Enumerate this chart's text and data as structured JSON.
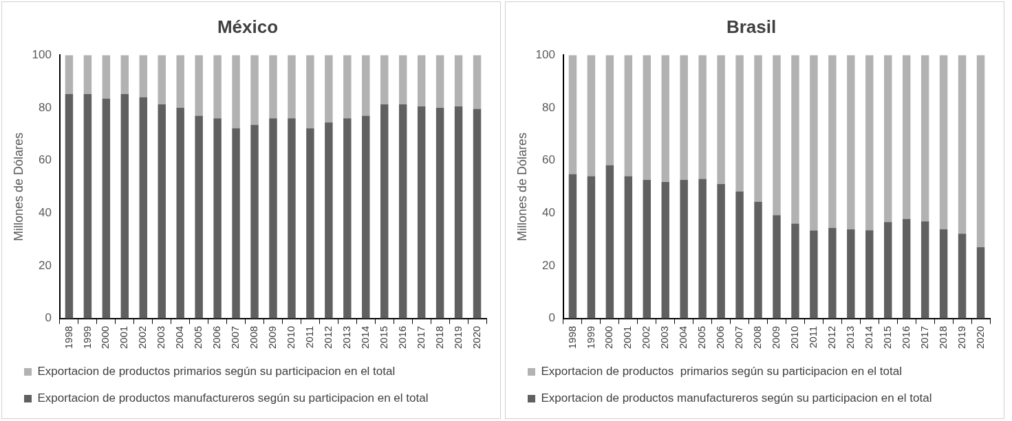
{
  "chart_data": [
    {
      "type": "bar",
      "title": "México",
      "ylabel": "Millones de Dólares",
      "stacked": true,
      "grid": false,
      "legend": "bottom",
      "categories": [
        "1998",
        "1999",
        "2000",
        "2001",
        "2002",
        "2003",
        "2004",
        "2005",
        "2006",
        "2007",
        "2008",
        "2009",
        "2010",
        "2011",
        "2012",
        "2013",
        "2014",
        "2015",
        "2016",
        "2017",
        "2018",
        "2019",
        "2020"
      ],
      "ylim": [
        0,
        100
      ],
      "yticks": [
        0,
        20,
        40,
        60,
        80,
        100
      ],
      "series": [
        {
          "name": "Exportacion de productos manufactureros según su participacion en el total",
          "color": "#606060",
          "values": [
            85.2,
            85.2,
            83.5,
            85.2,
            84,
            81.3,
            80,
            77,
            76,
            72.2,
            73.5,
            76,
            76,
            72.2,
            74.4,
            76,
            77,
            81.3,
            81.3,
            80.5,
            80,
            80.5,
            79.6
          ]
        },
        {
          "name": "Exportacion de productos primarios según su participacion en el total",
          "color": "#b2b2b2",
          "values": [
            14.8,
            14.8,
            16.5,
            14.8,
            16,
            18.7,
            20,
            23,
            24,
            27.8,
            26.5,
            24,
            24,
            27.8,
            25.6,
            24,
            23,
            18.7,
            18.7,
            19.5,
            20,
            19.5,
            20.4
          ]
        }
      ]
    },
    {
      "type": "bar",
      "title": "Brasil",
      "ylabel": "Millones de Dólares",
      "stacked": true,
      "grid": false,
      "legend": "bottom",
      "categories": [
        "1998",
        "1999",
        "2000",
        "2001",
        "2002",
        "2003",
        "2004",
        "2005",
        "2006",
        "2007",
        "2008",
        "2009",
        "2010",
        "2011",
        "2012",
        "2013",
        "2014",
        "2015",
        "2016",
        "2017",
        "2018",
        "2019",
        "2020"
      ],
      "ylim": [
        0,
        100
      ],
      "yticks": [
        0,
        20,
        40,
        60,
        80,
        100
      ],
      "series": [
        {
          "name": "Exportacion de productos manufactureros según su participacion en el total",
          "color": "#606060",
          "values": [
            54.8,
            54,
            58.2,
            54,
            52.6,
            51.8,
            52.6,
            53,
            51,
            48.2,
            44.3,
            39.2,
            36,
            33.4,
            34.4,
            33.8,
            33.5,
            36.6,
            37.8,
            36.9,
            33.9,
            32.2,
            27
          ]
        },
        {
          "name": "Exportacion de productos  primarios según su participacion en el total",
          "color": "#b2b2b2",
          "values": [
            45.2,
            46,
            41.8,
            46,
            47.4,
            48.2,
            47.4,
            47,
            49,
            51.8,
            55.7,
            60.8,
            64,
            66.6,
            65.6,
            66.2,
            66.5,
            63.4,
            62.2,
            63.1,
            66.1,
            67.8,
            73
          ]
        }
      ]
    }
  ]
}
